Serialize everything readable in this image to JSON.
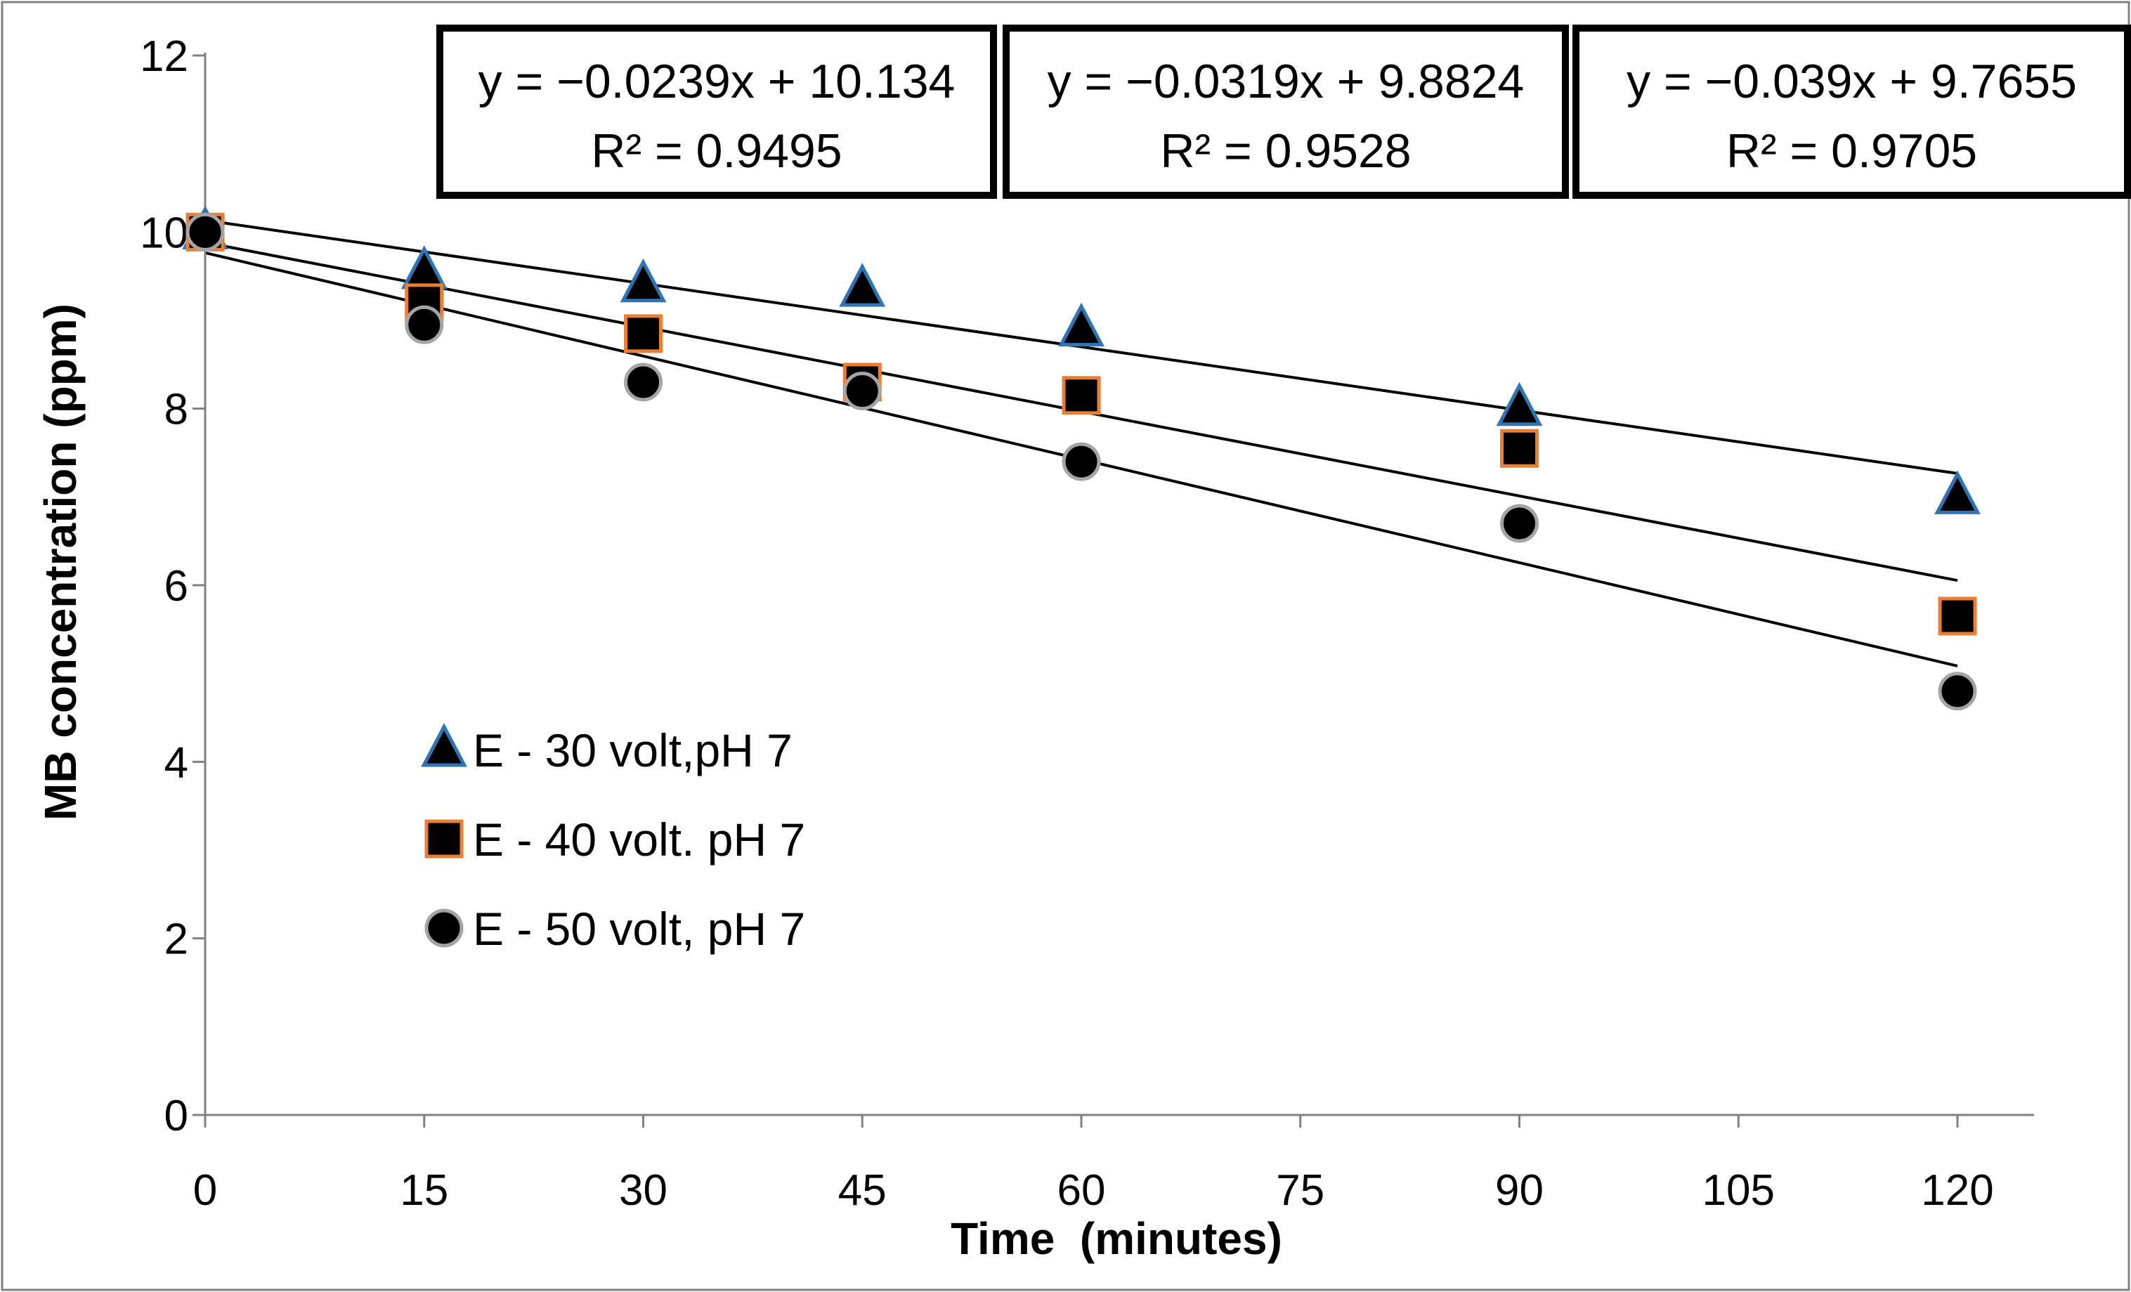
{
  "chart_data": {
    "type": "scatter",
    "xlabel": "Time  (minutes)",
    "ylabel": "MB concentration (ppm)",
    "xlim": [
      0,
      120
    ],
    "ylim": [
      0,
      12
    ],
    "x_ticks": [
      "0",
      "15",
      "30",
      "45",
      "60",
      "75",
      "90",
      "105",
      "120"
    ],
    "y_ticks": [
      "0",
      "2",
      "4",
      "6",
      "8",
      "10",
      "12"
    ],
    "grid": false,
    "legend_position": "left-center",
    "series": [
      {
        "name": "E - 30 volt,pH 7",
        "marker": "triangle",
        "fill": "#000000",
        "stroke": "#2e75b6",
        "x": [
          0,
          15,
          30,
          45,
          60,
          90,
          120
        ],
        "y": [
          10.0,
          9.55,
          9.4,
          9.35,
          8.9,
          8.0,
          7.0
        ],
        "trendline": {
          "slope": -0.0239,
          "intercept": 10.134,
          "equation": "y = −0.0239x + 10.134",
          "r2": "R² = 0.9495"
        }
      },
      {
        "name": "E - 40 volt. pH 7",
        "marker": "square",
        "fill": "#000000",
        "stroke": "#ed7d31",
        "x": [
          0,
          15,
          30,
          45,
          60,
          90,
          120
        ],
        "y": [
          10.0,
          9.2,
          8.85,
          8.3,
          8.15,
          7.55,
          5.65
        ],
        "trendline": {
          "slope": -0.0319,
          "intercept": 9.8824,
          "equation": "y = −0.0319x + 9.8824",
          "r2": "R² = 0.9528"
        }
      },
      {
        "name": "E - 50 volt, pH 7",
        "marker": "circle",
        "fill": "#000000",
        "stroke": "#a5a5a5",
        "x": [
          0,
          15,
          30,
          45,
          60,
          90,
          120
        ],
        "y": [
          10.0,
          8.95,
          8.3,
          8.2,
          7.4,
          6.7,
          4.8
        ],
        "trendline": {
          "slope": -0.039,
          "intercept": 9.7655,
          "equation": "y = −0.039x + 9.7655",
          "r2": "R² = 0.9705"
        }
      }
    ]
  }
}
